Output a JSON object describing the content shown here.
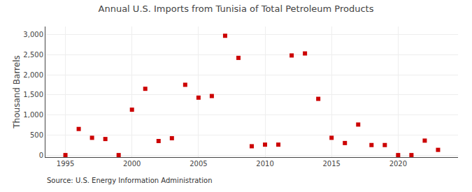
{
  "chart_data": {
    "type": "scatter",
    "title": "Annual U.S. Imports from Tunisia of Total Petroleum Products",
    "ylabel": "Thousand Barrels",
    "annotations": [
      "Source: U.S. Energy Information Administration"
    ],
    "x": [
      1995,
      1996,
      1997,
      1998,
      1999,
      2000,
      2001,
      2002,
      2003,
      2004,
      2005,
      2006,
      2007,
      2008,
      2009,
      2010,
      2011,
      2012,
      2013,
      2014,
      2015,
      2016,
      2017,
      2018,
      2019,
      2020,
      2021,
      2022,
      2023
    ],
    "values": [
      0,
      650,
      430,
      400,
      0,
      1130,
      1650,
      350,
      420,
      1750,
      1430,
      1470,
      2970,
      2420,
      220,
      260,
      260,
      2480,
      2530,
      1400,
      430,
      300,
      760,
      250,
      250,
      0,
      0,
      360,
      130
    ],
    "color": "#cc0000",
    "marker": "square",
    "xlim": [
      1993.5,
      2024.5
    ],
    "xticks": [
      1995,
      2000,
      2005,
      2010,
      2015,
      2020
    ],
    "ylim": [
      -50,
      3200
    ],
    "yticks": [
      0,
      500,
      {
        "value": 1000,
        "label": "1,000"
      },
      {
        "value": 1500,
        "label": "1,500"
      },
      {
        "value": 2000,
        "label": "2,000"
      },
      {
        "value": 2500,
        "label": "2,500"
      },
      {
        "value": 3000,
        "label": "3,000"
      }
    ],
    "grid": true
  }
}
